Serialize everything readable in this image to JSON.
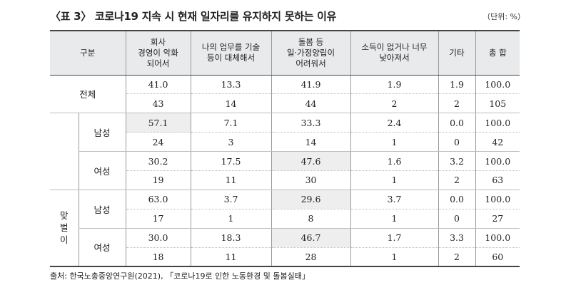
{
  "title": "〈표 3〉 코로나19 지속 시 현재 일자리를 유지하지 못하는 이유",
  "unit": "（단위: %）",
  "source": "출처: 한국노총중앙연구원(2021), 「코로나19로 인한 노동환경 및 돌봄실태」",
  "headers": {
    "category": "구분",
    "reason1": "회사\n경영이 악화\n되어서",
    "reason2": "나의 업무를 기술\n등이 대체해서",
    "reason3": "돌봄 등\n일·가정양립이\n어려워서",
    "reason4": "소득이 없거나 너무\n낮아져서",
    "other": "기타",
    "total": "총 합"
  },
  "labels": {
    "overall": "전체",
    "male": "남성",
    "female": "여성",
    "dual_income": "맞\n벌\n이"
  },
  "rows": [
    [
      "41.0",
      "13.3",
      "41.9",
      "1.9",
      "1.9",
      "100.0"
    ],
    [
      "43",
      "14",
      "44",
      "2",
      "2",
      "105"
    ],
    [
      "57.1",
      "7.1",
      "33.3",
      "2.4",
      "0.0",
      "100.0"
    ],
    [
      "24",
      "3",
      "14",
      "1",
      "0",
      "42"
    ],
    [
      "30.2",
      "17.5",
      "47.6",
      "1.6",
      "3.2",
      "100.0"
    ],
    [
      "19",
      "11",
      "30",
      "1",
      "2",
      "63"
    ],
    [
      "63.0",
      "3.7",
      "29.6",
      "3.7",
      "0.0",
      "100.0"
    ],
    [
      "17",
      "1",
      "8",
      "1",
      "0",
      "27"
    ],
    [
      "30.0",
      "18.3",
      "46.7",
      "1.7",
      "3.3",
      "100.0"
    ],
    [
      "18",
      "11",
      "28",
      "1",
      "2",
      "60"
    ]
  ],
  "highlight_color": "#eeeeee",
  "header_bg": "#e9eaec"
}
